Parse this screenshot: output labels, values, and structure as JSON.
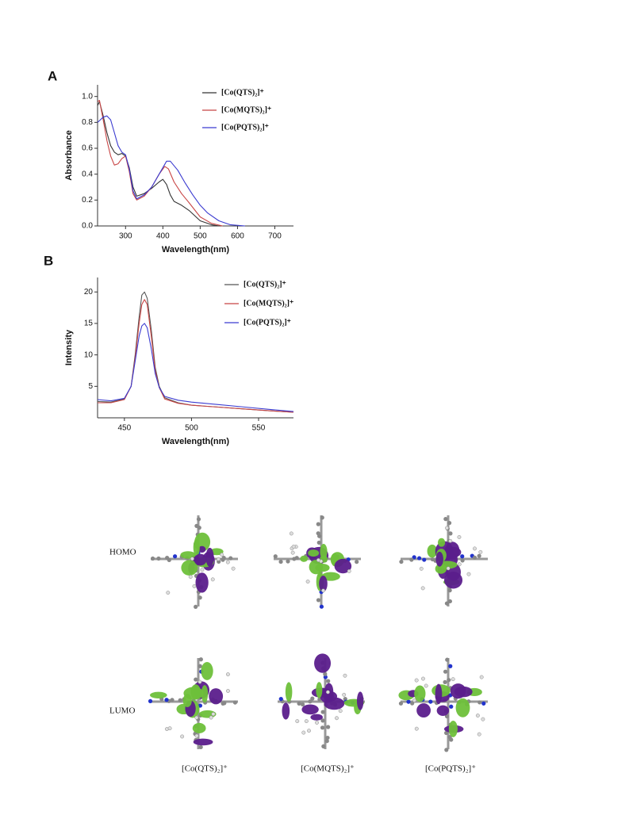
{
  "chart_data": [
    {
      "type": "line",
      "label": "A",
      "x_label": "Wavelength(nm)",
      "y_label": "Absorbance",
      "xlim": [
        225,
        750
      ],
      "xticks": [
        300,
        400,
        500,
        600,
        700
      ],
      "ylim": [
        0,
        1.09
      ],
      "yticks": [
        {
          "value": 0,
          "label": "0.0"
        },
        0.2,
        0.4,
        0.6,
        0.8,
        {
          "value": 1,
          "label": "1.0"
        }
      ],
      "series": [
        {
          "name": "[Co(QTS)₂]⁺",
          "color": "#333333",
          "x": [
            225,
            230,
            240,
            250,
            260,
            270,
            280,
            290,
            300,
            310,
            320,
            330,
            350,
            370,
            390,
            400,
            410,
            420,
            430,
            450,
            470,
            500,
            530,
            550
          ],
          "values": [
            0.93,
            0.96,
            0.85,
            0.72,
            0.62,
            0.57,
            0.55,
            0.56,
            0.54,
            0.45,
            0.3,
            0.23,
            0.25,
            0.29,
            0.34,
            0.36,
            0.32,
            0.24,
            0.19,
            0.16,
            0.12,
            0.04,
            0.01,
            0
          ]
        },
        {
          "name": "[Co(MQTS)₂]⁺",
          "color": "#c84545",
          "x": [
            225,
            230,
            240,
            250,
            260,
            270,
            280,
            290,
            300,
            310,
            320,
            330,
            350,
            370,
            390,
            405,
            415,
            430,
            450,
            470,
            500,
            530,
            560
          ],
          "values": [
            0.96,
            0.97,
            0.82,
            0.66,
            0.54,
            0.47,
            0.48,
            0.52,
            0.54,
            0.42,
            0.25,
            0.2,
            0.23,
            0.3,
            0.4,
            0.46,
            0.44,
            0.34,
            0.25,
            0.18,
            0.07,
            0.02,
            0
          ]
        },
        {
          "name": "[Co(PQTS)₂]⁺",
          "color": "#3b3bd0",
          "x": [
            225,
            240,
            250,
            260,
            270,
            280,
            290,
            300,
            310,
            320,
            330,
            350,
            370,
            390,
            410,
            420,
            440,
            460,
            480,
            500,
            520,
            550,
            580,
            620
          ],
          "values": [
            0.8,
            0.84,
            0.85,
            0.82,
            0.72,
            0.62,
            0.57,
            0.55,
            0.44,
            0.27,
            0.21,
            0.24,
            0.3,
            0.4,
            0.5,
            0.5,
            0.43,
            0.33,
            0.24,
            0.16,
            0.1,
            0.04,
            0.01,
            0
          ]
        }
      ]
    },
    {
      "type": "line",
      "label": "B",
      "x_label": "Wavelength(nm)",
      "y_label": "Intensity",
      "xlim": [
        430,
        576
      ],
      "xticks": [
        450,
        500,
        550
      ],
      "ylim": [
        0,
        22.3
      ],
      "yticks": [
        5,
        10,
        15,
        20
      ],
      "series": [
        {
          "name": "[Co(QTS)₂]⁺",
          "color": "#555555",
          "x": [
            430,
            440,
            450,
            455,
            458,
            461,
            463,
            465,
            467,
            470,
            473,
            476,
            480,
            490,
            500,
            520,
            540,
            560,
            576
          ],
          "values": [
            2.6,
            2.5,
            3,
            5,
            10,
            16,
            19.5,
            20,
            19,
            14,
            8,
            5,
            3.2,
            2.4,
            2,
            1.7,
            1.4,
            1.1,
            0.9
          ]
        },
        {
          "name": "[Co(MQTS)₂]⁺",
          "color": "#c84545",
          "x": [
            430,
            440,
            450,
            455,
            458,
            461,
            463,
            465,
            467,
            470,
            473,
            476,
            480,
            490,
            500,
            520,
            540,
            560,
            576
          ],
          "values": [
            2.4,
            2.4,
            2.9,
            5,
            9.5,
            15,
            18,
            18.8,
            18,
            13,
            7.5,
            4.8,
            3,
            2.3,
            2,
            1.7,
            1.4,
            1.1,
            0.9
          ]
        },
        {
          "name": "[Co(PQTS)₂]⁺",
          "color": "#3b3bd0",
          "x": [
            430,
            440,
            450,
            455,
            458,
            461,
            463,
            465,
            467,
            470,
            473,
            476,
            480,
            490,
            500,
            520,
            540,
            560,
            576
          ],
          "values": [
            2.9,
            2.7,
            3.1,
            5,
            9,
            13,
            14.6,
            15,
            14.3,
            11,
            7,
            4.8,
            3.4,
            2.8,
            2.5,
            2.1,
            1.7,
            1.3,
            1
          ]
        }
      ]
    }
  ],
  "orbitals": {
    "rows": [
      "HOMO",
      "LUMO"
    ],
    "compounds": [
      "[Co(QTS)₂]⁺",
      "[Co(MQTS)₂]⁺",
      "[Co(PQTS)₂]⁺"
    ]
  }
}
